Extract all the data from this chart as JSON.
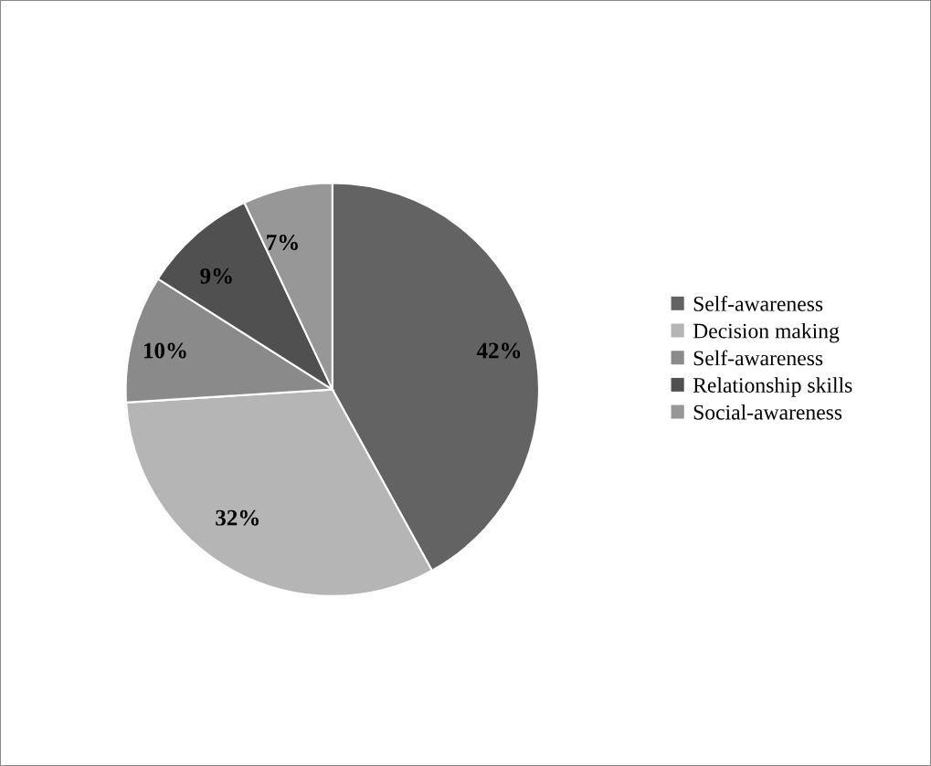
{
  "chart_data": {
    "type": "pie",
    "categories": [
      "Self-awareness",
      "Decision making",
      "Self-awareness",
      "Relationship skills",
      "Social-awareness"
    ],
    "values": [
      42,
      32,
      10,
      9,
      7
    ],
    "colors": [
      "#636363",
      "#b5b5b5",
      "#8a8a8a",
      "#505050",
      "#979797"
    ],
    "value_labels": [
      "42%",
      "32%",
      "10%",
      "9%",
      "7%"
    ],
    "legend": "right"
  }
}
